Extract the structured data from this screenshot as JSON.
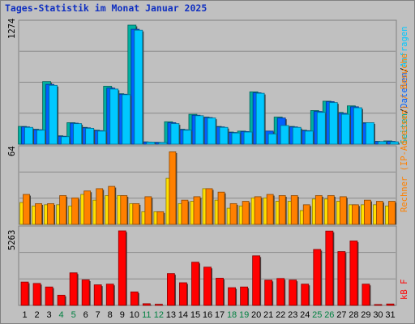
{
  "page": {
    "title": "Tages-Statistik im Monat Januar 2025"
  },
  "labels": {
    "panel1_max": "1274",
    "panel2_max": "64",
    "panel3_max": "5263",
    "right1_parts": [
      "Seiten",
      "/",
      "Dateien",
      "/",
      "Anfragen"
    ],
    "right2": "Rechner (IP-Adressen) / Besuche",
    "right3_parts": [
      "kB",
      " ",
      "F"
    ]
  },
  "colors": {
    "background": "#c0c0c0",
    "title": "#1030c0",
    "seiten": "#00b0a0",
    "dateien": "#0060ff",
    "anfragen": "#00c8ff",
    "besuche": "#ff8000",
    "rechner": "#ffe000",
    "kb": "#ff0000",
    "weekend_label": "#008040",
    "weekday_label": "#000000"
  },
  "chart_data": [
    {
      "type": "bar",
      "title": "Tages-Statistik im Monat Januar 2025",
      "categories": [
        "1",
        "2",
        "3",
        "4",
        "5",
        "6",
        "7",
        "8",
        "9",
        "10",
        "11",
        "12",
        "13",
        "14",
        "15",
        "16",
        "17",
        "18",
        "19",
        "20",
        "21",
        "22",
        "23",
        "24",
        "25",
        "26",
        "27",
        "28",
        "29",
        "30",
        "31"
      ],
      "weekend": [
        false,
        false,
        false,
        true,
        true,
        false,
        false,
        false,
        false,
        false,
        true,
        true,
        false,
        false,
        false,
        false,
        false,
        true,
        true,
        false,
        false,
        false,
        false,
        false,
        true,
        true,
        false,
        false,
        false,
        false,
        false
      ],
      "ylabel_max": 1274,
      "ylim": [
        0,
        1274
      ],
      "series": [
        {
          "name": "Seiten",
          "values": [
            190,
            160,
            670,
            90,
            230,
            180,
            150,
            620,
            540,
            1274,
            25,
            20,
            240,
            160,
            320,
            290,
            190,
            130,
            140,
            560,
            140,
            290,
            190,
            150,
            360,
            460,
            340,
            410,
            230,
            30,
            35
          ]
        },
        {
          "name": "Dateien",
          "values": [
            185,
            155,
            640,
            85,
            225,
            175,
            145,
            600,
            535,
            1230,
            23,
            19,
            230,
            155,
            310,
            285,
            185,
            125,
            135,
            550,
            140,
            280,
            185,
            145,
            350,
            455,
            330,
            400,
            225,
            28,
            30
          ]
        },
        {
          "name": "Anfragen",
          "values": [
            180,
            150,
            630,
            80,
            220,
            170,
            140,
            590,
            530,
            1220,
            22,
            18,
            220,
            150,
            305,
            280,
            180,
            120,
            130,
            545,
            110,
            200,
            180,
            140,
            340,
            445,
            320,
            390,
            230,
            27,
            25
          ]
        }
      ]
    },
    {
      "type": "bar",
      "categories": [
        "1",
        "2",
        "3",
        "4",
        "5",
        "6",
        "7",
        "8",
        "9",
        "10",
        "11",
        "12",
        "13",
        "14",
        "15",
        "16",
        "17",
        "18",
        "19",
        "20",
        "21",
        "22",
        "23",
        "24",
        "25",
        "26",
        "27",
        "28",
        "29",
        "30",
        "31"
      ],
      "ylabel_max": 64,
      "ylim": [
        0,
        64
      ],
      "series": [
        {
          "name": "Rechner",
          "values": [
            19,
            16,
            17,
            17,
            16,
            26,
            21,
            25,
            25,
            18,
            11,
            11,
            40,
            18,
            20,
            31,
            21,
            14,
            16,
            23,
            23,
            20,
            20,
            12,
            22,
            22,
            20,
            17,
            17,
            17,
            16
          ]
        },
        {
          "name": "Besuche",
          "values": [
            26,
            18,
            18,
            25,
            23,
            29,
            31,
            33,
            25,
            18,
            24,
            11,
            63,
            21,
            24,
            31,
            28,
            18,
            20,
            24,
            26,
            25,
            25,
            17,
            25,
            25,
            24,
            17,
            21,
            20,
            20
          ]
        }
      ]
    },
    {
      "type": "bar",
      "categories": [
        "1",
        "2",
        "3",
        "4",
        "5",
        "6",
        "7",
        "8",
        "9",
        "10",
        "11",
        "12",
        "13",
        "14",
        "15",
        "16",
        "17",
        "18",
        "19",
        "20",
        "21",
        "22",
        "23",
        "24",
        "25",
        "26",
        "27",
        "28",
        "29",
        "30",
        "31"
      ],
      "ylabel_max": 5263,
      "ylim": [
        0,
        5263
      ],
      "series": [
        {
          "name": "kB F",
          "values": [
            1650,
            1550,
            1300,
            720,
            2300,
            1800,
            1450,
            1500,
            5263,
            950,
            120,
            80,
            2250,
            1600,
            3050,
            2700,
            1920,
            1250,
            1300,
            3500,
            1780,
            1900,
            1790,
            1500,
            3950,
            5250,
            3800,
            4550,
            1500,
            60,
            100
          ]
        }
      ]
    }
  ]
}
